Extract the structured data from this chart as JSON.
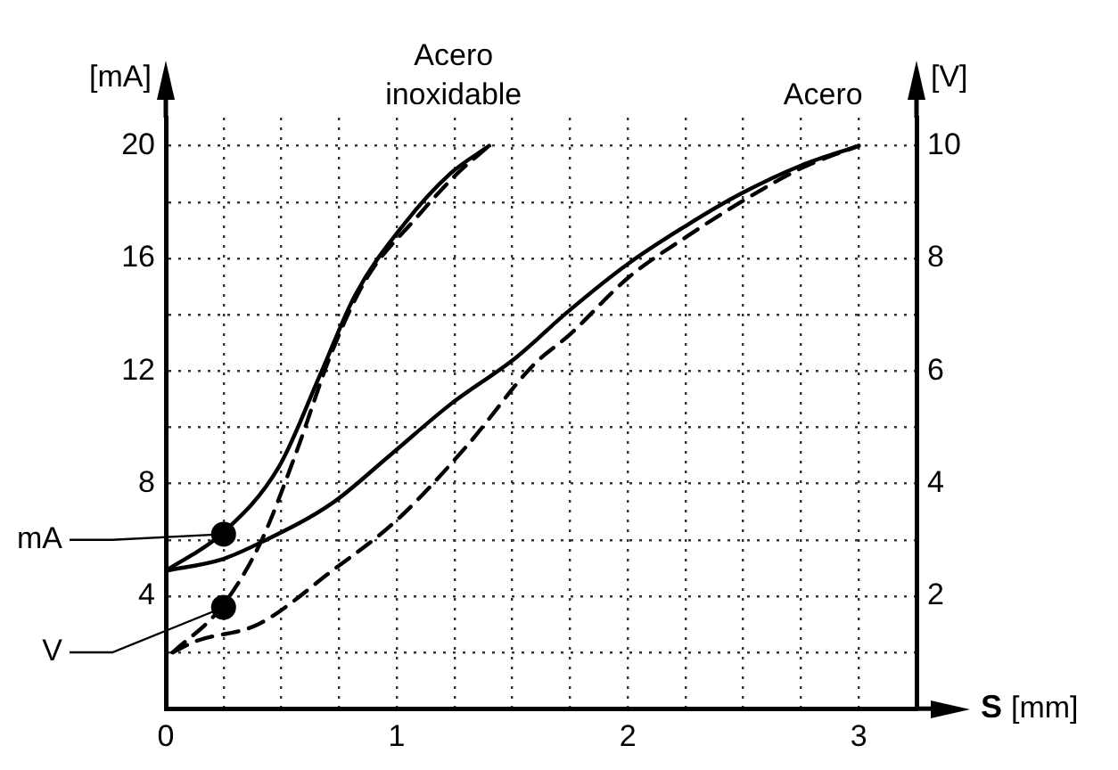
{
  "chart_data": {
    "type": "line",
    "xlabel": "S [mm]",
    "ylabel": "[mA]",
    "y2label": "[V]",
    "xlim": [
      0,
      3.25
    ],
    "xticks": [
      0,
      {
        "value": 0.25,
        "label": null
      },
      {
        "value": 0.5,
        "label": null
      },
      {
        "value": 0.75,
        "label": null
      },
      1,
      {
        "value": 1.25,
        "label": null
      },
      {
        "value": 1.5,
        "label": null
      },
      {
        "value": 1.75,
        "label": null
      },
      2,
      {
        "value": 2.25,
        "label": null
      },
      {
        "value": 2.5,
        "label": null
      },
      {
        "value": 2.75,
        "label": null
      },
      3
    ],
    "ylim": [
      0,
      21
    ],
    "yticks": [
      {
        "value": 2,
        "label": null
      },
      4,
      {
        "value": 6,
        "label": null
      },
      8,
      {
        "value": 10,
        "label": null
      },
      12,
      {
        "value": 14,
        "label": null
      },
      16,
      {
        "value": 18,
        "label": null
      },
      20
    ],
    "y2lim": [
      0,
      10.5
    ],
    "y2ticks": [
      2,
      4,
      6,
      8,
      10
    ],
    "grid": true,
    "marker": "none",
    "series": [
      {
        "color": "#000000",
        "line_style": "solid",
        "x": [
          0,
          0.24,
          0.49,
          0.67,
          0.82,
          1.03,
          1.23,
          1.4
        ],
        "values": [
          4.9,
          6.2,
          8.6,
          11.9,
          14.7,
          17.2,
          19.0,
          20.0
        ]
      },
      {
        "color": "#000000",
        "line_style": "dashed",
        "axis": "y2",
        "x": [
          0.03,
          0.24,
          0.41,
          0.56,
          0.72,
          0.87,
          1.08,
          1.26,
          1.4
        ],
        "values": [
          1.0,
          1.8,
          2.95,
          4.5,
          6.35,
          7.65,
          8.7,
          9.5,
          10.0
        ]
      },
      {
        "color": "#000000",
        "line_style": "solid",
        "x": [
          0,
          0.24,
          0.41,
          0.72,
          0.97,
          1.23,
          1.52,
          1.74,
          2.0,
          2.26,
          2.49,
          2.75,
          3.0
        ],
        "values": [
          4.9,
          5.3,
          5.9,
          7.3,
          9.0,
          10.8,
          12.5,
          14.1,
          15.8,
          17.2,
          18.3,
          19.3,
          20.0
        ]
      },
      {
        "color": "#000000",
        "line_style": "dashed",
        "axis": "y2",
        "x": [
          0.03,
          0.13,
          0.4,
          0.72,
          1.0,
          1.31,
          1.59,
          1.75,
          2.0,
          2.26,
          2.49,
          2.75,
          3.0
        ],
        "values": [
          1.0,
          1.2,
          1.5,
          2.45,
          3.35,
          4.7,
          6.1,
          6.65,
          7.65,
          8.4,
          9.0,
          9.6,
          10.0
        ]
      }
    ],
    "annotations": [
      {
        "text": "mA",
        "x": 0.25,
        "y": 6.2
      },
      {
        "text": "V",
        "x": 0.25,
        "y": 3.6
      },
      {
        "text": "Acero inoxidable",
        "x": 1.4,
        "y": 20
      },
      {
        "text": "Acero",
        "x": 3,
        "y": 20
      }
    ]
  }
}
